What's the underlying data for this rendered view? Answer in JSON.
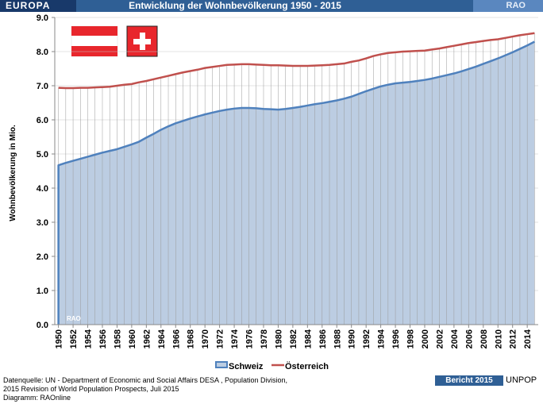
{
  "header": {
    "region": "EUROPA",
    "title": "Entwicklung der Wohnbevölkerung  1950 - 2015",
    "brand": "RAO"
  },
  "chart_data": {
    "type": "area",
    "ylabel": "Wohnbevölkerung in Mio.",
    "ylim": [
      0,
      9
    ],
    "yticks": [
      "0.0",
      "1.0",
      "2.0",
      "3.0",
      "4.0",
      "5.0",
      "6.0",
      "7.0",
      "8.0",
      "9.0"
    ],
    "x": [
      1950,
      1951,
      1952,
      1953,
      1954,
      1955,
      1956,
      1957,
      1958,
      1959,
      1960,
      1961,
      1962,
      1963,
      1964,
      1965,
      1966,
      1967,
      1968,
      1969,
      1970,
      1971,
      1972,
      1973,
      1974,
      1975,
      1976,
      1977,
      1978,
      1979,
      1980,
      1981,
      1982,
      1983,
      1984,
      1985,
      1986,
      1987,
      1988,
      1989,
      1990,
      1991,
      1992,
      1993,
      1994,
      1995,
      1996,
      1997,
      1998,
      1999,
      2000,
      2001,
      2002,
      2003,
      2004,
      2005,
      2006,
      2007,
      2008,
      2009,
      2010,
      2011,
      2012,
      2013,
      2014,
      2015
    ],
    "xtick_labels": [
      "1950",
      "1952",
      "1954",
      "1956",
      "1958",
      "1960",
      "1962",
      "1964",
      "1966",
      "1968",
      "1970",
      "1972",
      "1974",
      "1976",
      "1978",
      "1980",
      "1982",
      "1984",
      "1986",
      "1988",
      "1990",
      "1992",
      "1994",
      "1996",
      "1998",
      "2000",
      "2002",
      "2004",
      "2006",
      "2008",
      "2010",
      "2012",
      "2014"
    ],
    "series": [
      {
        "name": "Schweiz",
        "color": "#4f81bd",
        "fill": "#bccde2",
        "kind": "area",
        "values": [
          4.67,
          4.74,
          4.8,
          4.86,
          4.92,
          4.98,
          5.04,
          5.09,
          5.14,
          5.21,
          5.28,
          5.36,
          5.48,
          5.59,
          5.71,
          5.81,
          5.9,
          5.97,
          6.04,
          6.1,
          6.16,
          6.21,
          6.26,
          6.3,
          6.33,
          6.35,
          6.35,
          6.34,
          6.32,
          6.31,
          6.3,
          6.32,
          6.35,
          6.38,
          6.42,
          6.46,
          6.49,
          6.53,
          6.57,
          6.62,
          6.68,
          6.76,
          6.84,
          6.91,
          6.98,
          7.03,
          7.07,
          7.09,
          7.11,
          7.14,
          7.17,
          7.21,
          7.26,
          7.31,
          7.36,
          7.42,
          7.49,
          7.56,
          7.64,
          7.72,
          7.8,
          7.89,
          7.98,
          8.08,
          8.18,
          8.29
        ]
      },
      {
        "name": "Österreich",
        "color": "#c0504d",
        "kind": "line",
        "values": [
          6.94,
          6.93,
          6.93,
          6.94,
          6.94,
          6.95,
          6.96,
          6.97,
          7.0,
          7.03,
          7.05,
          7.1,
          7.14,
          7.19,
          7.24,
          7.29,
          7.34,
          7.39,
          7.43,
          7.47,
          7.52,
          7.55,
          7.58,
          7.61,
          7.62,
          7.63,
          7.63,
          7.62,
          7.61,
          7.6,
          7.6,
          7.59,
          7.58,
          7.58,
          7.58,
          7.59,
          7.6,
          7.61,
          7.63,
          7.65,
          7.7,
          7.74,
          7.8,
          7.87,
          7.92,
          7.96,
          7.98,
          8.0,
          8.01,
          8.02,
          8.03,
          8.06,
          8.09,
          8.13,
          8.17,
          8.21,
          8.25,
          8.28,
          8.31,
          8.34,
          8.36,
          8.4,
          8.44,
          8.48,
          8.51,
          8.54
        ]
      }
    ],
    "watermark": "RAO",
    "legend_position": "bottom"
  },
  "footer": {
    "source_line1": "Datenquelle: UN -  Department of Economic and Social Affairs DESA , Population Division,",
    "source_line2": "2015 Revision of World Population Prospects, Juli 2015",
    "source_line3": "Diagramm: RAOnline",
    "report": "Bericht 2015",
    "unpop": "UNPOP"
  }
}
